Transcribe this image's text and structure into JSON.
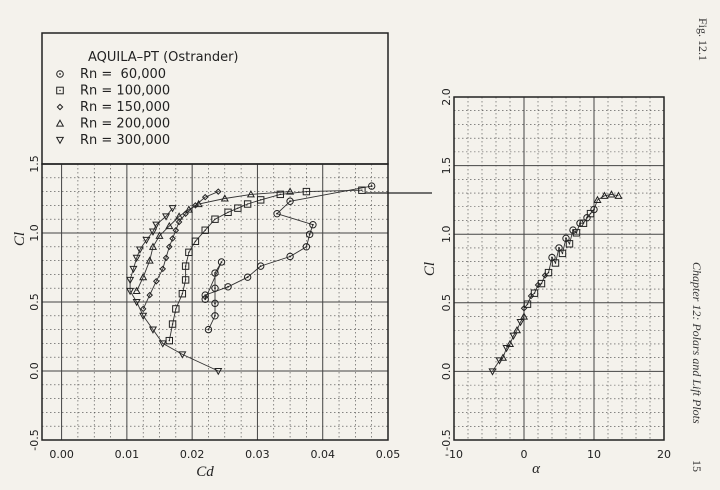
{
  "page": {
    "fig_label": "Fig. 12.1",
    "chapter_running_head": "Chapter 12: Polars and Lift Plots",
    "page_number": "15"
  },
  "chart_data": [
    {
      "type": "scatter",
      "title": "AQUILA–PT (Ostrander)",
      "xlabel": "Cd",
      "ylabel": "Cl",
      "xlim": [
        -0.003,
        0.05
      ],
      "ylim": [
        -0.5,
        1.5
      ],
      "grid": true,
      "legend_position": "top-left",
      "xticks": [
        "0.00",
        "0.01",
        "0.02",
        "0.03",
        "0.04",
        "0.05"
      ],
      "yticks": [
        "-0.5",
        "0.0",
        "0.5",
        "1.0",
        "1.5"
      ],
      "series": [
        {
          "name": "Rn =  60,000",
          "marker": "circle-dot",
          "x": [
            0.0225,
            0.0235,
            0.0235,
            0.0235,
            0.0235,
            0.0245,
            0.022,
            0.022,
            0.0255,
            0.0285,
            0.0305,
            0.035,
            0.0375,
            0.038,
            0.0385,
            0.033,
            0.035,
            0.0475
          ],
          "y": [
            0.3,
            0.4,
            0.49,
            0.6,
            0.71,
            0.79,
            0.52,
            0.55,
            0.61,
            0.68,
            0.76,
            0.83,
            0.9,
            0.99,
            1.06,
            1.14,
            1.23,
            1.34
          ]
        },
        {
          "name": "Rn = 100,000",
          "marker": "square",
          "x": [
            0.0165,
            0.017,
            0.0175,
            0.0185,
            0.019,
            0.019,
            0.0195,
            0.0205,
            0.022,
            0.0235,
            0.0255,
            0.027,
            0.0285,
            0.0305,
            0.0335,
            0.0375,
            0.046
          ],
          "y": [
            0.22,
            0.34,
            0.45,
            0.56,
            0.66,
            0.76,
            0.86,
            0.94,
            1.02,
            1.1,
            1.15,
            1.18,
            1.21,
            1.24,
            1.28,
            1.3,
            1.31
          ]
        },
        {
          "name": "Rn = 150,000",
          "marker": "diamond",
          "x": [
            0.0125,
            0.0135,
            0.0145,
            0.0155,
            0.016,
            0.0165,
            0.017,
            0.0175,
            0.018,
            0.019,
            0.0205,
            0.022,
            0.024
          ],
          "y": [
            0.45,
            0.55,
            0.65,
            0.74,
            0.82,
            0.9,
            0.96,
            1.02,
            1.08,
            1.14,
            1.2,
            1.26,
            1.3
          ]
        },
        {
          "name": "Rn = 200,000",
          "marker": "triangle-up",
          "x": [
            0.0115,
            0.0125,
            0.0135,
            0.014,
            0.015,
            0.0165,
            0.018,
            0.0195,
            0.021,
            0.025,
            0.029,
            0.035
          ],
          "y": [
            0.58,
            0.68,
            0.8,
            0.9,
            0.98,
            1.05,
            1.12,
            1.17,
            1.21,
            1.25,
            1.28,
            1.3
          ]
        },
        {
          "name": "Rn = 300,000",
          "marker": "triangle-down",
          "x": [
            0.024,
            0.0185,
            0.0155,
            0.014,
            0.0125,
            0.0115,
            0.0105,
            0.0105,
            0.011,
            0.0115,
            0.012,
            0.013,
            0.014,
            0.0145,
            0.016,
            0.017
          ],
          "y": [
            0.0,
            0.12,
            0.2,
            0.3,
            0.4,
            0.5,
            0.58,
            0.66,
            0.74,
            0.82,
            0.88,
            0.95,
            1.01,
            1.06,
            1.12,
            1.18
          ]
        }
      ]
    },
    {
      "type": "scatter",
      "title": "",
      "xlabel": "α",
      "ylabel": "Cl",
      "xlim": [
        -10,
        20
      ],
      "ylim": [
        -0.5,
        2.0
      ],
      "grid": true,
      "xticks": [
        "-10",
        "0",
        "10",
        "20"
      ],
      "yticks": [
        "-0.5",
        "0.0",
        "0.5",
        "1.0",
        "1.5",
        "2.0"
      ],
      "series": [
        {
          "name": "Rn = 300,000",
          "marker": "triangle-down",
          "x": [
            -4.5,
            -3.5,
            -2.5,
            -1.5,
            -0.5
          ],
          "y": [
            0.0,
            0.08,
            0.17,
            0.26,
            0.36
          ]
        },
        {
          "name": "Rn = 200,000",
          "marker": "triangle-up",
          "x": [
            -3.0,
            -2.0,
            -1.0,
            0.0
          ],
          "y": [
            0.1,
            0.2,
            0.3,
            0.4
          ]
        },
        {
          "name": "Rn = 150,000",
          "marker": "diamond",
          "x": [
            0.0,
            1.0,
            2.0,
            3.0
          ],
          "y": [
            0.46,
            0.55,
            0.63,
            0.7
          ]
        },
        {
          "name": "Rn = 100,000",
          "marker": "square",
          "x": [
            0.5,
            1.5,
            2.5,
            3.5,
            4.5,
            5.5,
            6.5,
            7.5,
            8.5,
            9.5
          ],
          "y": [
            0.49,
            0.57,
            0.64,
            0.72,
            0.79,
            0.86,
            0.93,
            1.01,
            1.08,
            1.15
          ]
        },
        {
          "name": "Rn =  60,000",
          "marker": "circle-dot",
          "x": [
            4.0,
            5.0,
            6.0,
            7.0,
            8.0,
            9.0,
            10.0
          ],
          "y": [
            0.83,
            0.9,
            0.97,
            1.03,
            1.08,
            1.12,
            1.18
          ]
        },
        {
          "name": "Rn = 200,000",
          "marker": "triangle-up",
          "x": [
            10.5,
            11.5,
            12.5,
            13.5
          ],
          "y": [
            1.25,
            1.28,
            1.29,
            1.28
          ]
        }
      ]
    }
  ]
}
